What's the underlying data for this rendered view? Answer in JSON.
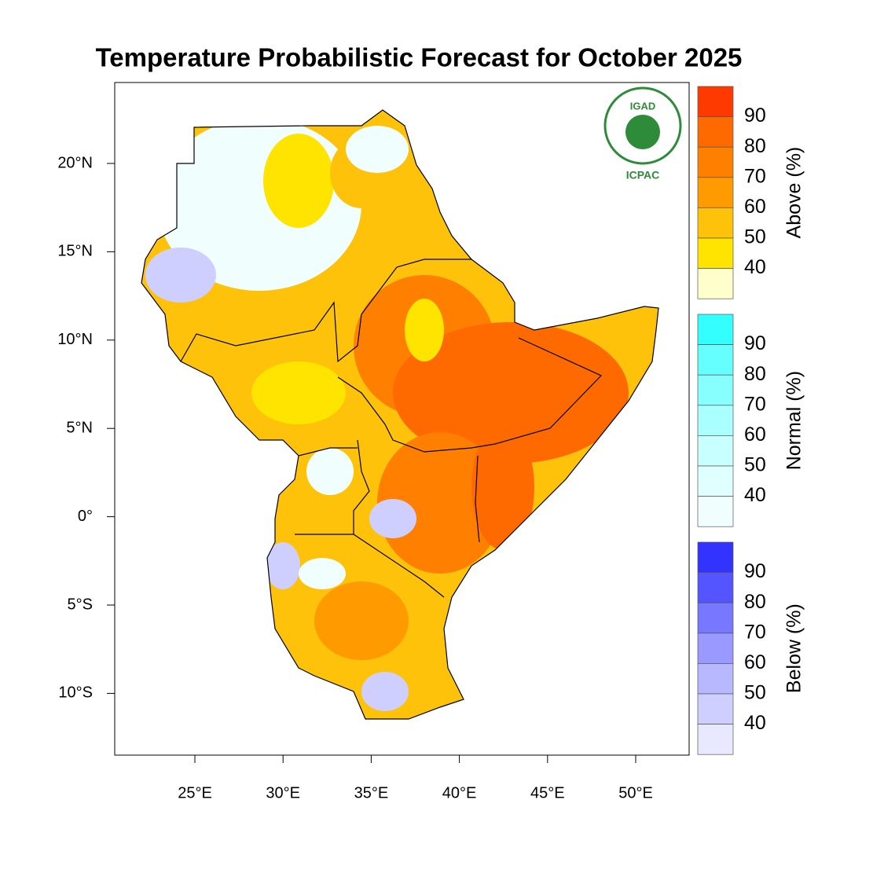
{
  "title": "Temperature Probabilistic Forecast for October 2025",
  "map": {
    "lat_labels": [
      "20°N",
      "15°N",
      "10°N",
      "5°N",
      "0°",
      "5°S",
      "10°S"
    ],
    "lon_labels": [
      "25°E",
      "30°E",
      "35°E",
      "40°E",
      "45°E",
      "50°E"
    ]
  },
  "logo": {
    "name": "IGAD",
    "subtitle": "ICPAC"
  },
  "legend": {
    "groups": [
      {
        "label": "Above (%)",
        "levels": [
          90,
          80,
          70,
          60,
          50,
          40
        ],
        "colors": [
          "#ff3a00",
          "#ff6a00",
          "#ff8000",
          "#ff9a00",
          "#ffc20a",
          "#ffe400",
          "#ffffcc"
        ]
      },
      {
        "label": "Normal (%)",
        "levels": [
          90,
          80,
          70,
          60,
          50,
          40
        ],
        "colors": [
          "#33ffff",
          "#66ffff",
          "#88ffff",
          "#aaffff",
          "#c8ffff",
          "#e0ffff",
          "#f0fffe"
        ]
      },
      {
        "label": "Below (%)",
        "levels": [
          90,
          80,
          70,
          60,
          50,
          40
        ],
        "colors": [
          "#3333ff",
          "#5555ff",
          "#7777ff",
          "#9999ff",
          "#b8b8ff",
          "#cfcfff",
          "#e8e8ff"
        ]
      }
    ]
  }
}
